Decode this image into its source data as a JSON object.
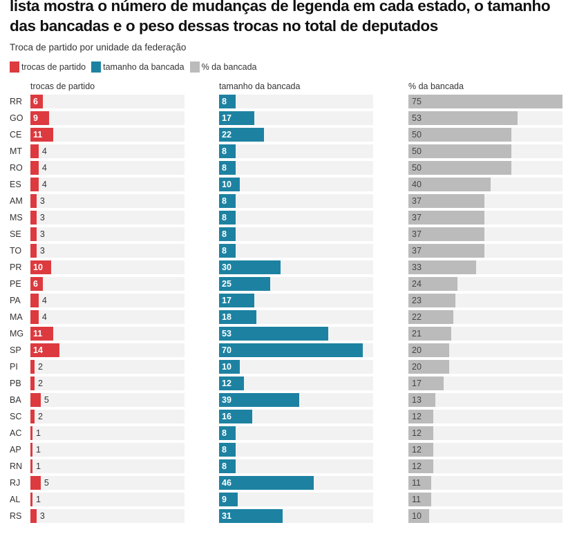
{
  "title": "lista mostra o número de mudanças de legenda em cada estado, o tamanho das bancadas e o peso dessas trocas no total de deputados",
  "subtitle": "Troca de partido por unidade da federação",
  "chart_data": {
    "type": "bar",
    "orientation": "horizontal",
    "title": "lista mostra o número de mudanças de legenda em cada estado, o tamanho das bancadas e o peso dessas trocas no total de deputados",
    "subtitle": "Troca de partido por unidade da federação",
    "xlim": [
      0,
      75
    ],
    "grid": false,
    "legend_position": "top-left",
    "categories": [
      "RR",
      "GO",
      "CE",
      "MT",
      "RO",
      "ES",
      "AM",
      "MS",
      "SE",
      "TO",
      "PR",
      "PE",
      "PA",
      "MA",
      "MG",
      "SP",
      "PI",
      "PB",
      "BA",
      "SC",
      "AC",
      "AP",
      "RN",
      "RJ",
      "AL",
      "RS"
    ],
    "series": [
      {
        "name": "trocas de partido",
        "color": "#dc3a3f",
        "values": [
          6,
          9,
          11,
          4,
          4,
          4,
          3,
          3,
          3,
          3,
          10,
          6,
          4,
          4,
          11,
          14,
          2,
          2,
          5,
          2,
          1,
          1,
          1,
          5,
          1,
          3
        ]
      },
      {
        "name": "tamanho da bancada",
        "color": "#1d82a2",
        "values": [
          8,
          17,
          22,
          8,
          8,
          10,
          8,
          8,
          8,
          8,
          30,
          25,
          17,
          18,
          53,
          70,
          10,
          12,
          39,
          16,
          8,
          8,
          8,
          46,
          9,
          31
        ]
      },
      {
        "name": "% da bancada",
        "color": "#bbbbbb",
        "values": [
          75,
          53,
          50,
          50,
          50,
          40,
          37,
          37,
          37,
          37,
          33,
          24,
          23,
          22,
          21,
          20,
          20,
          17,
          13,
          12,
          12,
          12,
          12,
          11,
          11,
          10
        ]
      }
    ]
  }
}
